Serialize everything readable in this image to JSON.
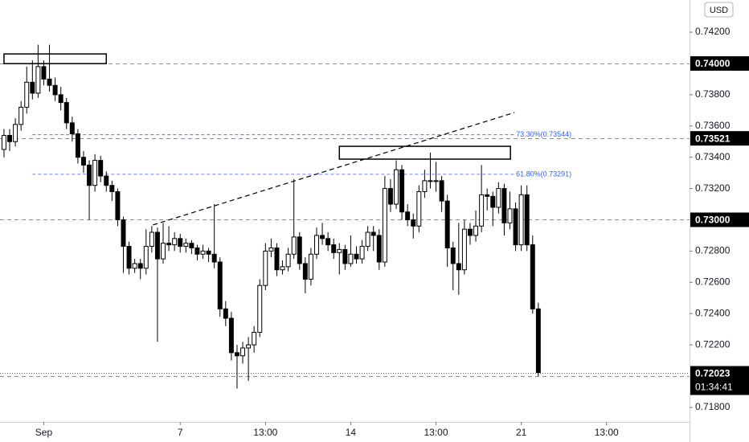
{
  "chart_data": {
    "type": "candlestick",
    "currency": "USD",
    "xlim": [
      -0.7,
      120.6
    ],
    "ylim": [
      0.71707,
      0.74406
    ],
    "xticks": [
      {
        "value": 7,
        "label": "Sep"
      },
      {
        "value": 31,
        "label": "7"
      },
      {
        "value": 46,
        "label": "13:00"
      },
      {
        "value": 61,
        "label": "14"
      },
      {
        "value": 76,
        "label": "13:00"
      },
      {
        "value": 91,
        "label": "21"
      },
      {
        "value": 106,
        "label": "13:00"
      }
    ],
    "yticks": [
      {
        "value": 0.742,
        "label": "0.74200"
      },
      {
        "value": 0.738,
        "label": "0.73800"
      },
      {
        "value": 0.736,
        "label": "0.73600"
      },
      {
        "value": 0.734,
        "label": "0.73400"
      },
      {
        "value": 0.732,
        "label": "0.73200"
      },
      {
        "value": 0.728,
        "label": "0.72800"
      },
      {
        "value": 0.726,
        "label": "0.72600"
      },
      {
        "value": 0.724,
        "label": "0.72400"
      },
      {
        "value": 0.722,
        "label": "0.72200"
      },
      {
        "value": 0.718,
        "label": "0.71800"
      }
    ],
    "up_color": "#ffffff",
    "down_color": "#000000",
    "outline_color": "#000000",
    "candles": {
      "x": [
        0,
        1,
        2,
        3,
        4,
        5,
        6,
        7,
        8,
        9,
        10,
        11,
        12,
        13,
        14,
        15,
        16,
        17,
        18,
        19,
        20,
        21,
        22,
        23,
        24,
        25,
        26,
        27,
        28,
        29,
        30,
        31,
        32,
        33,
        34,
        35,
        36,
        37,
        38,
        39,
        40,
        41,
        42,
        43,
        44,
        45,
        46,
        47,
        48,
        49,
        50,
        51,
        52,
        53,
        54,
        55,
        56,
        57,
        58,
        59,
        60,
        61,
        62,
        63,
        64,
        65,
        66,
        67,
        68,
        69,
        70,
        71,
        72,
        73,
        74,
        75,
        76,
        77,
        78,
        79,
        80,
        81,
        82,
        83,
        84,
        85,
        86,
        87,
        88,
        89,
        90,
        91,
        92,
        93,
        94
      ],
      "open": [
        0.7345,
        0.7354,
        0.735,
        0.7361,
        0.7372,
        0.7388,
        0.7381,
        0.7398,
        0.739,
        0.7386,
        0.738,
        0.7375,
        0.7362,
        0.7355,
        0.734,
        0.7335,
        0.7322,
        0.7338,
        0.7328,
        0.7322,
        0.7318,
        0.73,
        0.7283,
        0.7269,
        0.7272,
        0.7269,
        0.7283,
        0.7292,
        0.7275,
        0.7285,
        0.7284,
        0.7288,
        0.7283,
        0.7285,
        0.7282,
        0.7278,
        0.728,
        0.7278,
        0.7273,
        0.7243,
        0.7237,
        0.7215,
        0.7213,
        0.7218,
        0.722,
        0.7228,
        0.7258,
        0.728,
        0.7282,
        0.7268,
        0.727,
        0.7278,
        0.7289,
        0.7272,
        0.7262,
        0.7278,
        0.729,
        0.7288,
        0.7284,
        0.7279,
        0.7281,
        0.7272,
        0.7278,
        0.7275,
        0.7283,
        0.7292,
        0.729,
        0.7273,
        0.732,
        0.731,
        0.7332,
        0.7305,
        0.73,
        0.7296,
        0.7318,
        0.7325,
        0.7325,
        0.7325,
        0.7312,
        0.7282,
        0.7272,
        0.7268,
        0.7294,
        0.729,
        0.7296,
        0.7316,
        0.7315,
        0.7308,
        0.732,
        0.7298,
        0.7307,
        0.7284,
        0.7316,
        0.7284,
        0.7243
      ],
      "high": [
        0.7358,
        0.7358,
        0.7365,
        0.7376,
        0.7398,
        0.7402,
        0.7412,
        0.7402,
        0.7412,
        0.7391,
        0.7385,
        0.7378,
        0.7366,
        0.7358,
        0.7344,
        0.7338,
        0.7342,
        0.7341,
        0.7331,
        0.7325,
        0.732,
        0.7302,
        0.7286,
        0.7275,
        0.7275,
        0.7294,
        0.7296,
        0.7295,
        0.7298,
        0.7296,
        0.7292,
        0.7291,
        0.7288,
        0.7287,
        0.7284,
        0.7284,
        0.7282,
        0.731,
        0.7276,
        0.7248,
        0.7241,
        0.722,
        0.7222,
        0.7225,
        0.7232,
        0.7262,
        0.7285,
        0.7288,
        0.7285,
        0.7274,
        0.7282,
        0.7326,
        0.7292,
        0.7276,
        0.7282,
        0.7295,
        0.7298,
        0.7292,
        0.7288,
        0.7285,
        0.7284,
        0.729,
        0.7283,
        0.7287,
        0.7296,
        0.7296,
        0.7294,
        0.7328,
        0.7326,
        0.7338,
        0.7335,
        0.731,
        0.7304,
        0.7322,
        0.7332,
        0.7343,
        0.7337,
        0.7328,
        0.7316,
        0.7286,
        0.7298,
        0.73,
        0.7298,
        0.7306,
        0.7335,
        0.732,
        0.7318,
        0.7324,
        0.7323,
        0.7318,
        0.7311,
        0.7322,
        0.7322,
        0.729,
        0.7247
      ],
      "low": [
        0.734,
        0.7344,
        0.7347,
        0.7357,
        0.7368,
        0.7377,
        0.7378,
        0.7386,
        0.7382,
        0.7376,
        0.737,
        0.7358,
        0.735,
        0.7336,
        0.733,
        0.73,
        0.7318,
        0.7324,
        0.7318,
        0.7312,
        0.7296,
        0.7266,
        0.7265,
        0.7266,
        0.7262,
        0.7265,
        0.7279,
        0.7222,
        0.7272,
        0.728,
        0.728,
        0.7279,
        0.7279,
        0.7278,
        0.7274,
        0.7275,
        0.7273,
        0.7269,
        0.7238,
        0.7232,
        0.721,
        0.7192,
        0.7208,
        0.7197,
        0.7215,
        0.7225,
        0.7255,
        0.7276,
        0.7264,
        0.7265,
        0.7267,
        0.7275,
        0.7268,
        0.7253,
        0.7258,
        0.7275,
        0.7284,
        0.728,
        0.7275,
        0.7265,
        0.7268,
        0.727,
        0.7272,
        0.7272,
        0.728,
        0.728,
        0.7268,
        0.727,
        0.7305,
        0.7307,
        0.73,
        0.7296,
        0.7288,
        0.7292,
        0.7314,
        0.732,
        0.7318,
        0.7305,
        0.727,
        0.7255,
        0.7252,
        0.7265,
        0.7284,
        0.7286,
        0.7292,
        0.7306,
        0.7296,
        0.7304,
        0.729,
        0.7294,
        0.728,
        0.728,
        0.728,
        0.724,
        0.72
      ],
      "close": [
        0.7354,
        0.735,
        0.7361,
        0.7372,
        0.7388,
        0.7381,
        0.7398,
        0.739,
        0.7386,
        0.738,
        0.7375,
        0.7362,
        0.7355,
        0.734,
        0.7335,
        0.7322,
        0.7338,
        0.7328,
        0.7322,
        0.7318,
        0.73,
        0.7283,
        0.7269,
        0.7272,
        0.7269,
        0.7283,
        0.7292,
        0.7275,
        0.7285,
        0.7284,
        0.7288,
        0.7283,
        0.7285,
        0.7282,
        0.7278,
        0.728,
        0.7278,
        0.7273,
        0.7243,
        0.7237,
        0.7215,
        0.7213,
        0.7218,
        0.722,
        0.7228,
        0.7258,
        0.728,
        0.7282,
        0.7268,
        0.727,
        0.7278,
        0.7289,
        0.7272,
        0.7262,
        0.7278,
        0.729,
        0.7288,
        0.7284,
        0.7279,
        0.7281,
        0.7272,
        0.7278,
        0.7275,
        0.7283,
        0.7292,
        0.729,
        0.7273,
        0.732,
        0.731,
        0.7332,
        0.7305,
        0.73,
        0.7296,
        0.7318,
        0.7325,
        0.7325,
        0.7325,
        0.7312,
        0.7282,
        0.7272,
        0.7268,
        0.7294,
        0.729,
        0.7296,
        0.7316,
        0.7315,
        0.7308,
        0.732,
        0.7298,
        0.7307,
        0.7284,
        0.7316,
        0.7284,
        0.7243,
        0.72023
      ]
    },
    "levels": [
      {
        "value": 0.74,
        "label": "0.74000"
      },
      {
        "value": 0.73521,
        "label": "0.73521"
      },
      {
        "value": 0.73,
        "label": "0.73000"
      },
      {
        "value": 0.72
      }
    ],
    "current_price": {
      "value": 0.72023,
      "label": "0.72023",
      "countdown": "01:34:41"
    },
    "fib_levels": {
      "color": "#2962ff",
      "x": [
        5,
        89.8
      ],
      "levels": [
        {
          "value": 0.73544,
          "label": "73.30%(0.73544)"
        },
        {
          "value": 0.73291,
          "label": "61.80%(0.73291)"
        }
      ]
    },
    "trendline": {
      "x": [
        26.2,
        89.8
      ],
      "y": [
        0.72967,
        0.73686
      ]
    },
    "boxes": [
      {
        "x": [
          0,
          18
        ],
        "y": [
          0.73999,
          0.74061
        ]
      },
      {
        "x": [
          59,
          89.1
        ],
        "y": [
          0.73388,
          0.7347
        ]
      }
    ]
  }
}
